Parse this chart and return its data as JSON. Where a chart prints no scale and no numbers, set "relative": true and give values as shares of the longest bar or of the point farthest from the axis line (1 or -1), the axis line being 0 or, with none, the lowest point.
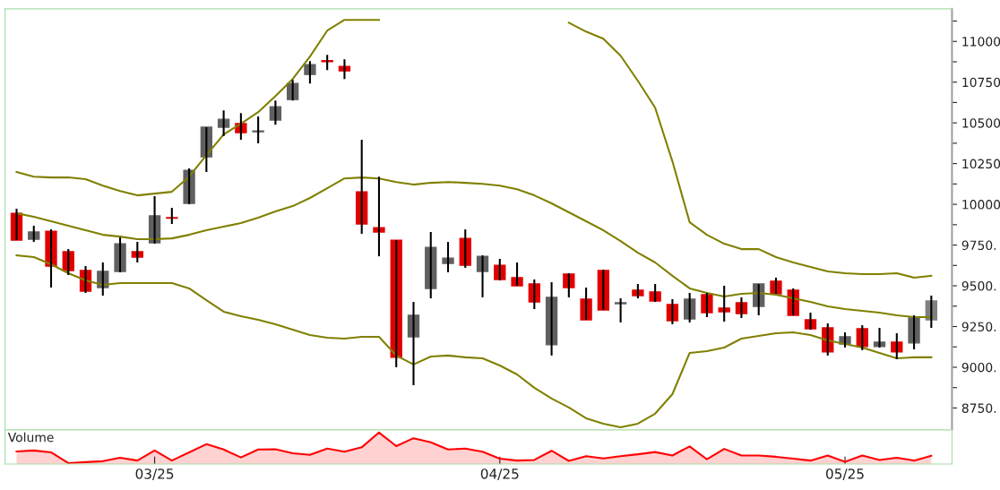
{
  "chart_data": [
    {
      "type": "candlestick",
      "ohlc": [
        [
          9945,
          9973,
          9780,
          9780
        ],
        [
          9786,
          9868,
          9769,
          9830
        ],
        [
          9835,
          9846,
          9489,
          9621
        ],
        [
          9709,
          9725,
          9566,
          9594
        ],
        [
          9594,
          9621,
          9456,
          9467
        ],
        [
          9489,
          9643,
          9440,
          9588
        ],
        [
          9588,
          9797,
          9583,
          9758
        ],
        [
          9709,
          9769,
          9643,
          9676
        ],
        [
          9764,
          10050,
          9758,
          9929
        ],
        [
          9918,
          9978,
          9879,
          9915
        ],
        [
          10006,
          10220,
          10000,
          10209
        ],
        [
          10291,
          10473,
          10198,
          10473
        ],
        [
          10473,
          10577,
          10418,
          10522
        ],
        [
          10495,
          10560,
          10396,
          10440
        ],
        [
          10445,
          10539,
          10374,
          10451
        ],
        [
          10517,
          10637,
          10489,
          10599
        ],
        [
          10643,
          10764,
          10637,
          10742
        ],
        [
          10797,
          10879,
          10742,
          10857
        ],
        [
          10882,
          10918,
          10824,
          10876
        ],
        [
          10846,
          10890,
          10769,
          10819
        ],
        [
          10077,
          10396,
          9819,
          9879
        ],
        [
          9857,
          10170,
          9681,
          9830
        ],
        [
          9780,
          9780,
          9000,
          9061
        ],
        [
          9187,
          9401,
          8890,
          9319
        ],
        [
          9484,
          9830,
          9423,
          9736
        ],
        [
          9637,
          9769,
          9583,
          9670
        ],
        [
          9791,
          9846,
          9610,
          9626
        ],
        [
          9588,
          9687,
          9429,
          9681
        ],
        [
          9626,
          9665,
          9533,
          9539
        ],
        [
          9550,
          9643,
          9500,
          9500
        ],
        [
          9511,
          9539,
          9357,
          9401
        ],
        [
          9138,
          9522,
          9072,
          9429
        ],
        [
          9572,
          9577,
          9429,
          9489
        ],
        [
          9418,
          9489,
          9291,
          9291
        ],
        [
          9594,
          9599,
          9352,
          9352
        ],
        [
          9390,
          9423,
          9275,
          9396
        ],
        [
          9473,
          9511,
          9423,
          9440
        ],
        [
          9462,
          9511,
          9401,
          9407
        ],
        [
          9385,
          9418,
          9264,
          9286
        ],
        [
          9297,
          9456,
          9275,
          9418
        ],
        [
          9445,
          9456,
          9308,
          9335
        ],
        [
          9363,
          9500,
          9280,
          9341
        ],
        [
          9396,
          9429,
          9302,
          9330
        ],
        [
          9374,
          9511,
          9319,
          9511
        ],
        [
          9528,
          9550,
          9451,
          9451
        ],
        [
          9473,
          9484,
          9319,
          9319
        ],
        [
          9291,
          9335,
          9231,
          9236
        ],
        [
          9242,
          9269,
          9072,
          9094
        ],
        [
          9143,
          9214,
          9121,
          9187
        ],
        [
          9236,
          9258,
          9105,
          9127
        ],
        [
          9127,
          9242,
          9121,
          9154
        ],
        [
          9154,
          9209,
          9050,
          9094
        ],
        [
          9149,
          9319,
          9110,
          9302
        ],
        [
          9291,
          9440,
          9242,
          9407
        ]
      ],
      "colors": [
        "#e00000",
        "#606060",
        "#e00000",
        "#e00000",
        "#e00000",
        "#606060",
        "#606060",
        "#e00000",
        "#606060",
        "#e00000",
        "#606060",
        "#606060",
        "#606060",
        "#e00000",
        "#606060",
        "#606060",
        "#606060",
        "#606060",
        "#e00000",
        "#e00000",
        "#e00000",
        "#e00000",
        "#e00000",
        "#606060",
        "#606060",
        "#606060",
        "#e00000",
        "#606060",
        "#e00000",
        "#e00000",
        "#e00000",
        "#606060",
        "#e00000",
        "#e00000",
        "#e00000",
        "#606060",
        "#e00000",
        "#e00000",
        "#e00000",
        "#606060",
        "#e00000",
        "#e00000",
        "#e00000",
        "#606060",
        "#e00000",
        "#e00000",
        "#e00000",
        "#e00000",
        "#606060",
        "#e00000",
        "#606060",
        "#e00000",
        "#606060",
        "#808080"
      ],
      "series": [
        {
          "type": "line",
          "color": "#808000",
          "values": [
            10198,
            10170,
            10165,
            10165,
            10154,
            10115,
            10082,
            10055,
            10066,
            10077,
            10170,
            10302,
            10429,
            10495,
            10566,
            10665,
            10769,
            10907,
            11066,
            11132,
            11132,
            11132,
            null,
            null,
            null,
            null,
            null,
            null,
            null,
            null,
            null,
            null,
            11115,
            11060,
            11016,
            10912,
            10758,
            10593,
            10264,
            9890,
            9813,
            9758,
            9725,
            9725,
            9676,
            9643,
            9616,
            9588,
            9577,
            9572,
            9572,
            9577,
            9550,
            9561
          ]
        },
        {
          "type": "line",
          "color": "#808000",
          "values": [
            9945,
            9923,
            9896,
            9868,
            9841,
            9813,
            9802,
            9786,
            9786,
            9791,
            9813,
            9841,
            9863,
            9885,
            9918,
            9956,
            9989,
            10039,
            10099,
            10159,
            10165,
            10159,
            10137,
            10121,
            10132,
            10137,
            10132,
            10126,
            10115,
            10093,
            10055,
            10006,
            9951,
            9896,
            9841,
            9775,
            9703,
            9643,
            9561,
            9484,
            9456,
            9434,
            9451,
            9456,
            9445,
            9423,
            9401,
            9374,
            9357,
            9346,
            9335,
            9319,
            9308,
            9308
          ]
        },
        {
          "type": "line",
          "color": "#808000",
          "values": [
            9687,
            9676,
            9632,
            9577,
            9533,
            9506,
            9517,
            9517,
            9517,
            9517,
            9484,
            9412,
            9341,
            9313,
            9291,
            9264,
            9231,
            9198,
            9181,
            9176,
            9187,
            9187,
            9072,
            9017,
            9066,
            9072,
            9061,
            9055,
            9011,
            8956,
            8874,
            8808,
            8753,
            8687,
            8654,
            8632,
            8654,
            8715,
            8835,
            9088,
            9099,
            9121,
            9176,
            9192,
            9209,
            9214,
            9198,
            9165,
            9143,
            9121,
            9088,
            9055,
            9061,
            9061
          ]
        }
      ],
      "ylim": [
        8615,
        11200
      ],
      "yticks": [
        {
          "value": 8750,
          "label": "8750."
        },
        {
          "value": 8875,
          "label": null
        },
        {
          "value": 9000,
          "label": "9000."
        },
        {
          "value": 9125,
          "label": null
        },
        {
          "value": 9250,
          "label": "9250."
        },
        {
          "value": 9375,
          "label": null
        },
        {
          "value": 9500,
          "label": "9500."
        },
        {
          "value": 9625,
          "label": null
        },
        {
          "value": 9750,
          "label": "9750."
        },
        {
          "value": 9875,
          "label": null
        },
        {
          "value": 10000,
          "label": "10000"
        },
        {
          "value": 10125,
          "label": null
        },
        {
          "value": 10250,
          "label": "10250"
        },
        {
          "value": 10375,
          "label": null
        },
        {
          "value": 10500,
          "label": "10500"
        },
        {
          "value": 10625,
          "label": null
        },
        {
          "value": 10750,
          "label": "10750"
        },
        {
          "value": 10875,
          "label": null
        },
        {
          "value": 11000,
          "label": "11000"
        },
        {
          "value": 11125,
          "label": null
        }
      ],
      "tick_labels": "y",
      "grid": false
    },
    {
      "type": "area",
      "title": "Volume",
      "relative": true,
      "color": "#ff0000",
      "categories": [
        null,
        null,
        null,
        null,
        null,
        null,
        null,
        null,
        "03/25",
        null,
        null,
        null,
        null,
        null,
        null,
        null,
        null,
        null,
        null,
        null,
        null,
        null,
        null,
        null,
        null,
        null,
        null,
        null,
        "04/25",
        null,
        null,
        null,
        null,
        null,
        null,
        null,
        null,
        null,
        null,
        null,
        null,
        null,
        null,
        null,
        null,
        null,
        null,
        null,
        "05/25",
        null,
        null,
        null,
        null,
        null
      ],
      "values": [
        0.4,
        0.43,
        0.37,
        0.03,
        0.06,
        0.09,
        0.2,
        0.11,
        0.43,
        0.11,
        0.37,
        0.63,
        0.46,
        0.21,
        0.46,
        0.47,
        0.34,
        0.29,
        0.49,
        0.39,
        0.53,
        1,
        0.57,
        0.82,
        0.69,
        0.46,
        0.49,
        0.39,
        0.17,
        0.11,
        0.13,
        0.42,
        0.1,
        0.25,
        0.18,
        0.25,
        0.31,
        0.38,
        0.27,
        0.56,
        0.15,
        0.48,
        0.27,
        0.27,
        0.23,
        0.17,
        0.11,
        0.27,
        0.07,
        0.27,
        0.13,
        0.2,
        0.11,
        0.26
      ],
      "tick_labels": "x",
      "grid": false
    }
  ]
}
